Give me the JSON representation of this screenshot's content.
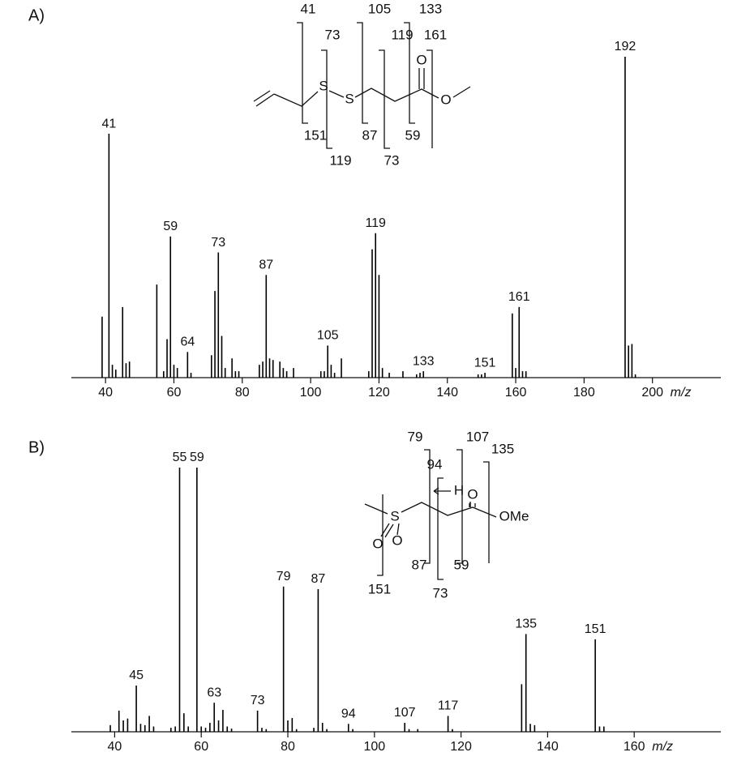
{
  "chart_data": [
    {
      "type": "stem",
      "panel": "A)",
      "color": "#000000",
      "xlim": [
        30,
        220
      ],
      "ylim": [
        0,
        100
      ],
      "xticks": [
        40,
        60,
        80,
        100,
        120,
        140,
        160,
        180,
        200
      ],
      "xlabel": "m/z",
      "x": [
        39,
        41,
        42,
        43,
        45,
        46,
        47,
        55,
        57,
        58,
        59,
        60,
        61,
        64,
        65,
        71,
        72,
        73,
        74,
        75,
        77,
        78,
        79,
        85,
        86,
        87,
        88,
        89,
        91,
        92,
        93,
        95,
        103,
        104,
        105,
        106,
        107,
        109,
        117,
        118,
        119,
        120,
        121,
        123,
        127,
        131,
        132,
        133,
        149,
        150,
        151,
        159,
        160,
        161,
        162,
        163,
        192,
        193,
        194,
        195
      ],
      "values": [
        19,
        76,
        4,
        2.5,
        22,
        4.5,
        5,
        29,
        2,
        12,
        44,
        4,
        3,
        8,
        1.5,
        7,
        27,
        39,
        13,
        3,
        6,
        2,
        2,
        4,
        5,
        32,
        6,
        5.5,
        5,
        3,
        2,
        3,
        2,
        2,
        10,
        4,
        1.5,
        6,
        2,
        40,
        45,
        32,
        3,
        1.5,
        2,
        1,
        1.5,
        2,
        1,
        1,
        1.5,
        20,
        3,
        22,
        2,
        2,
        100,
        10,
        10.5,
        1
      ],
      "peak_labels": [
        41,
        59,
        64,
        73,
        87,
        105,
        119,
        133,
        151,
        161,
        192
      ],
      "structure_labels": [
        "41",
        "73",
        "105",
        "119",
        "133",
        "161",
        "151",
        "119",
        "87",
        "73",
        "59",
        "S",
        "S",
        "O",
        "O"
      ]
    },
    {
      "type": "stem",
      "panel": "B)",
      "color": "#000000",
      "xlim": [
        30,
        180
      ],
      "ylim": [
        0,
        100
      ],
      "xticks": [
        40,
        60,
        80,
        100,
        120,
        140,
        160
      ],
      "xlabel": "m/z",
      "x": [
        39,
        41,
        42,
        43,
        45,
        46,
        47,
        48,
        49,
        53,
        54,
        55,
        56,
        57,
        59,
        60,
        61,
        62,
        63,
        64,
        65,
        66,
        67,
        73,
        74,
        75,
        79,
        80,
        81,
        82,
        86,
        87,
        88,
        89,
        94,
        95,
        107,
        108,
        110,
        117,
        118,
        134,
        135,
        136,
        137,
        151,
        152,
        153
      ],
      "values": [
        2.5,
        8,
        4.3,
        5,
        17.5,
        3,
        2.5,
        6,
        2,
        1.5,
        2,
        100,
        7,
        2,
        100,
        2,
        1.5,
        3.4,
        11,
        4.3,
        8.3,
        2,
        1.2,
        8,
        1.5,
        1,
        55,
        4.3,
        5.2,
        1,
        1.5,
        54,
        3.4,
        1,
        3,
        1,
        3.4,
        1,
        1,
        6,
        1,
        18,
        37,
        3,
        2.5,
        35,
        2,
        2
      ],
      "peak_labels": [
        45,
        55,
        59,
        63,
        73,
        79,
        87,
        94,
        107,
        117,
        135,
        151
      ],
      "structure_labels": [
        "79",
        "107",
        "135",
        "94",
        "151",
        "87",
        "73",
        "59",
        "S",
        "O",
        "O",
        "O",
        "OMe",
        "H"
      ]
    }
  ]
}
